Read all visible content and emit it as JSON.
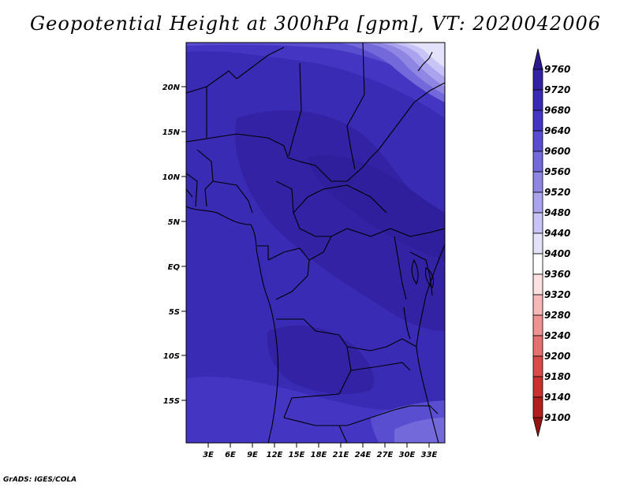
{
  "title": "Geopotential Height at 300hPa [gpm], VT: 2020042006",
  "footer": "GrADS: IGES/COLA",
  "map": {
    "lat_labels": [
      "20N",
      "15N",
      "10N",
      "5N",
      "EQ",
      "5S",
      "10S",
      "15S"
    ],
    "lon_labels": [
      "3E",
      "6E",
      "9E",
      "12E",
      "15E",
      "18E",
      "21E",
      "24E",
      "27E",
      "30E",
      "33E"
    ]
  },
  "colorbar": {
    "labels": [
      "9760",
      "9720",
      "9680",
      "9640",
      "9600",
      "9560",
      "9520",
      "9480",
      "9440",
      "9400",
      "9360",
      "9320",
      "9280",
      "9240",
      "9200",
      "9180",
      "9140",
      "9100"
    ],
    "colors": [
      "#2a1a8c",
      "#3322a4",
      "#3a2bb4",
      "#4535c3",
      "#5a4ed0",
      "#7469db",
      "#8f86e4",
      "#aaa3ee",
      "#c9c4f6",
      "#e4e2fb",
      "#ffffff",
      "#fde0e0",
      "#f7b8b8",
      "#ef9292",
      "#e47070",
      "#d84a4a",
      "#c93030",
      "#b01e1e",
      "#961313"
    ]
  }
}
